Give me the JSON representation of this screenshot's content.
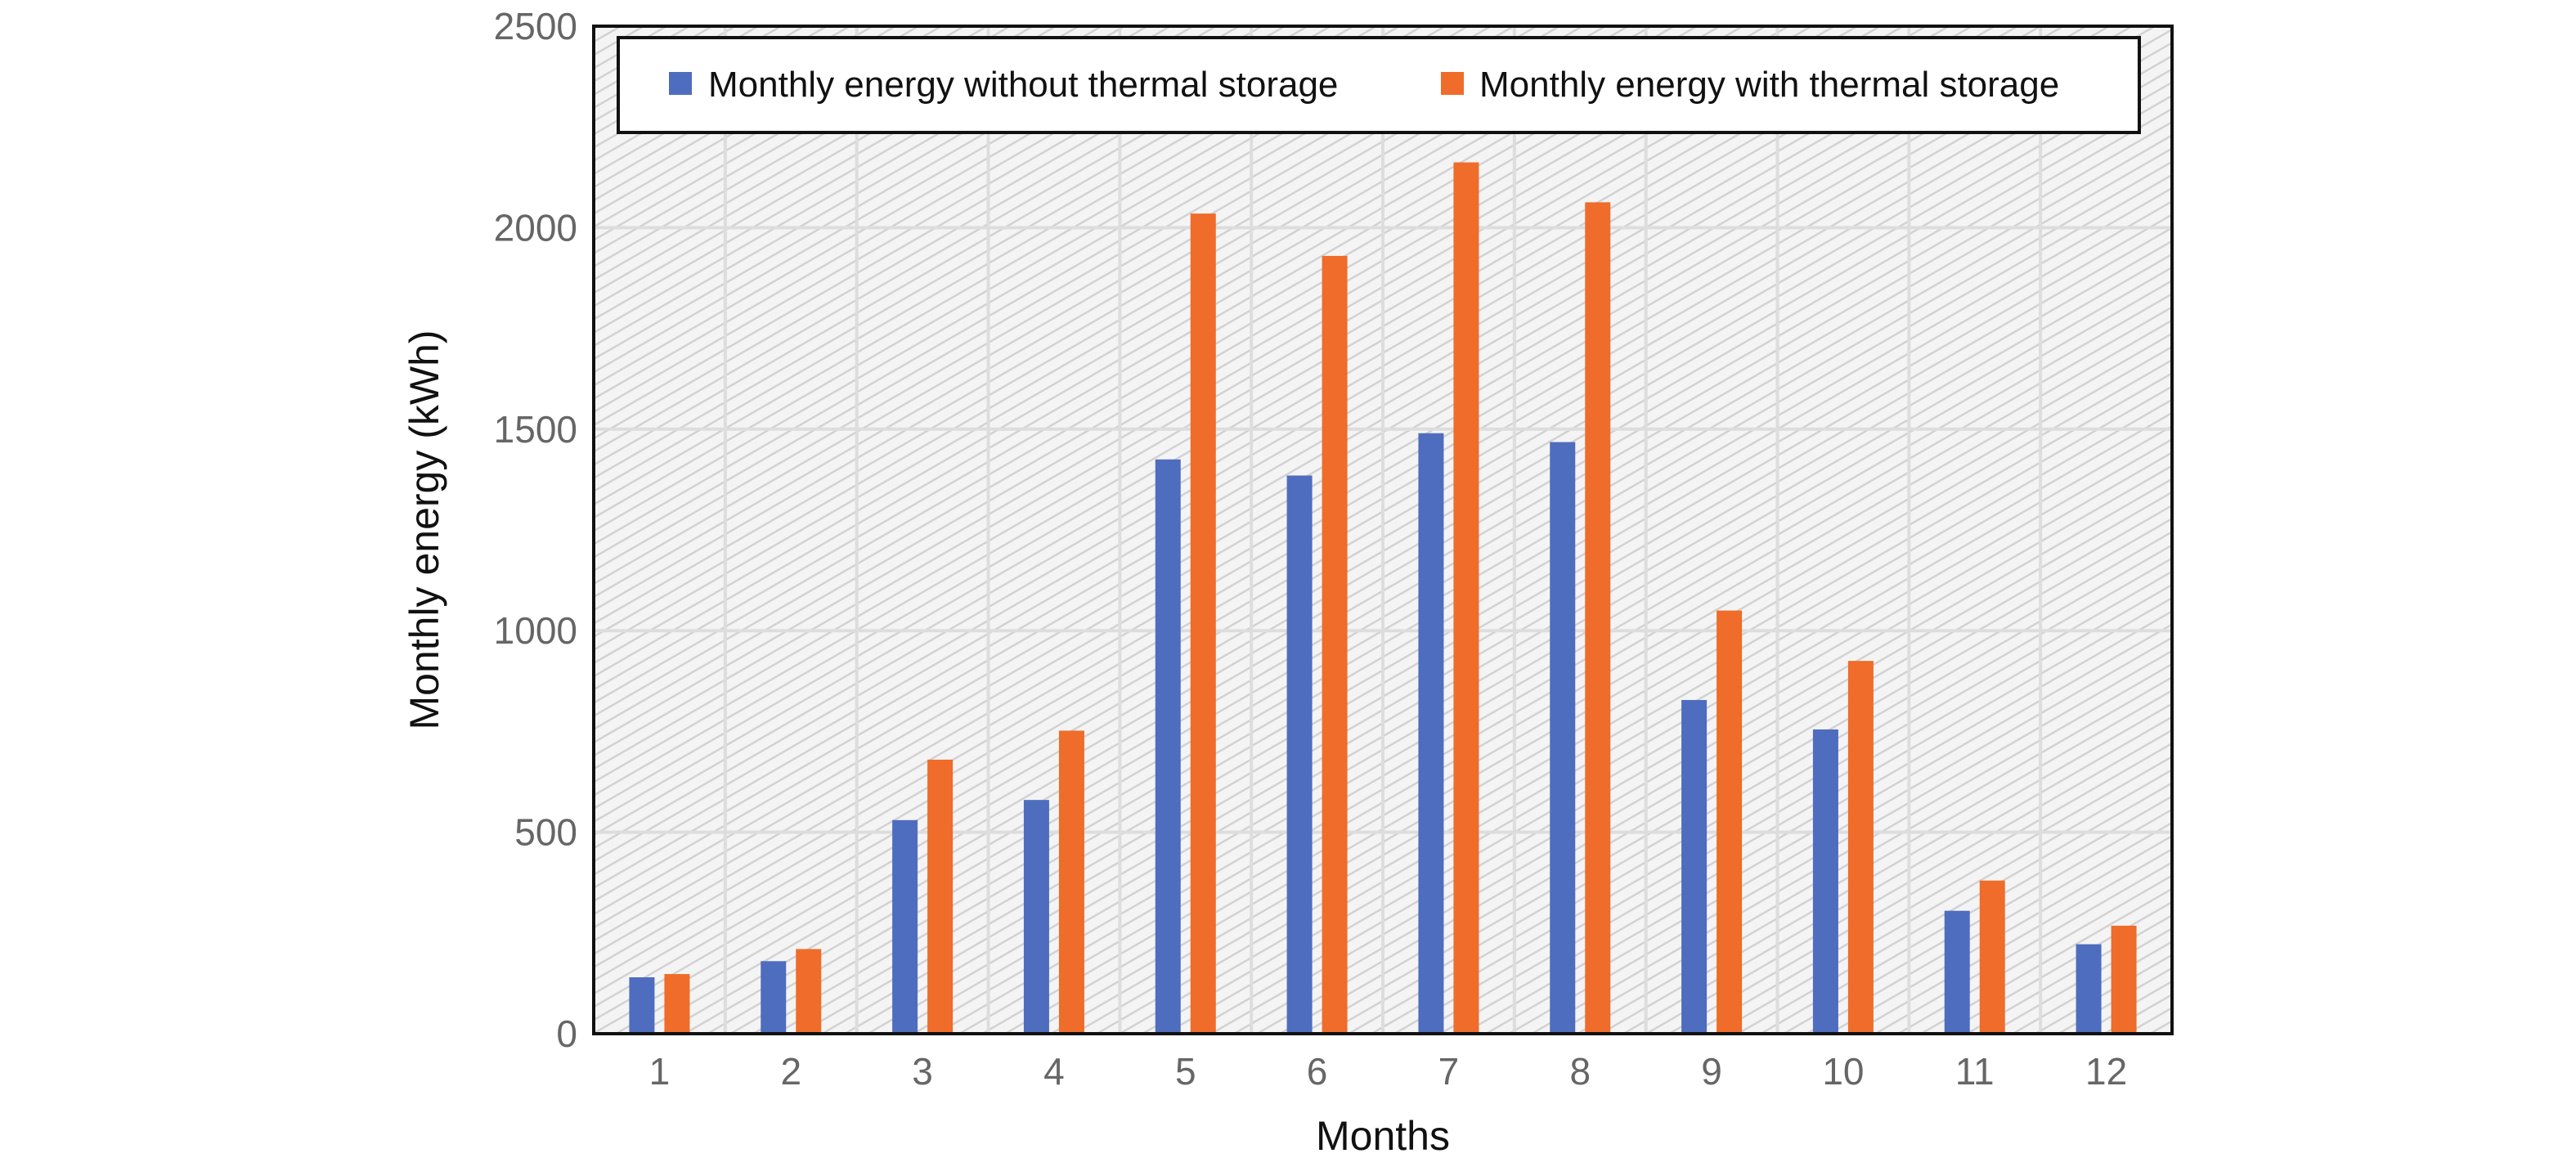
{
  "chart_data": {
    "type": "bar",
    "title": "",
    "xlabel": "Months",
    "ylabel": "Monthly energy (kWh)",
    "categories": [
      "1",
      "2",
      "3",
      "4",
      "5",
      "6",
      "7",
      "8",
      "9",
      "10",
      "11",
      "12"
    ],
    "series": [
      {
        "name": "Monthly energy without thermal storage",
        "color": "#4f6dbf",
        "values": [
          140,
          180,
          530,
          580,
          1425,
          1385,
          1490,
          1468,
          828,
          755,
          305,
          222
        ]
      },
      {
        "name": "Monthly energy with thermal storage",
        "color": "#ef6c2a",
        "values": [
          148,
          210,
          680,
          752,
          2035,
          1930,
          2162,
          2063,
          1050,
          925,
          380,
          268
        ]
      }
    ],
    "ylim": [
      0,
      2500
    ],
    "yticks": [
      "0",
      "500",
      "1000",
      "1500",
      "2000",
      "2500"
    ],
    "grid": true,
    "legend_position": "top"
  }
}
